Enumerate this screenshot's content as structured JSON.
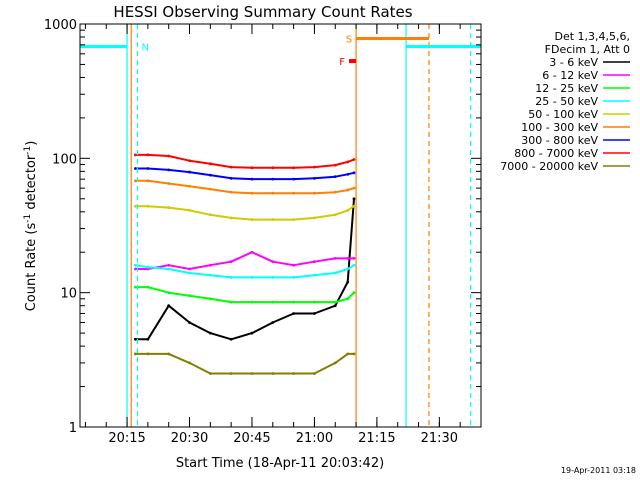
{
  "chart_data": {
    "type": "line",
    "title": "HESSI Observing Summary Count Rates",
    "xlabel": "Start Time (18-Apr-11 20:03:42)",
    "ylabel": "Count Rate (s⁻¹ detector⁻¹)",
    "yscale": "log",
    "ylim": [
      1,
      1000
    ],
    "xlim": [
      "20:03:42",
      "21:40:00"
    ],
    "x_ticks": [
      "20:15",
      "20:30",
      "20:45",
      "21:00",
      "21:15",
      "21:30"
    ],
    "y_ticks": [
      "1",
      "10",
      "100",
      "1000"
    ],
    "grid": false,
    "legend_position": "right",
    "legend_header": [
      "Det 1,3,4,5,6,",
      "FDecim 1, Att 0"
    ],
    "footer_stamp": "19-Apr-2011 03:18",
    "x": [
      "20:17:00",
      "20:20:00",
      "20:25:00",
      "20:30:00",
      "20:35:00",
      "20:40:00",
      "20:45:00",
      "20:50:00",
      "20:55:00",
      "21:00:00",
      "21:05:00",
      "21:08:00",
      "21:09:30"
    ],
    "series": [
      {
        "name": "3 - 6 keV",
        "color": "#000000",
        "values": [
          4.5,
          4.5,
          8,
          6,
          5,
          4.5,
          5,
          6,
          7,
          7,
          8,
          12,
          50
        ]
      },
      {
        "name": "6 - 12 keV",
        "color": "#ff00ff",
        "values": [
          15,
          15,
          16,
          15,
          16,
          17,
          20,
          17,
          16,
          17,
          18,
          18,
          18
        ]
      },
      {
        "name": "12 - 25 keV",
        "color": "#00ff00",
        "values": [
          11,
          11,
          10,
          9.5,
          9,
          8.5,
          8.5,
          8.5,
          8.5,
          8.5,
          8.5,
          9,
          10
        ]
      },
      {
        "name": "25 - 50 keV",
        "color": "#00ffff",
        "values": [
          16,
          15.5,
          15,
          14,
          13.5,
          13,
          13,
          13,
          13,
          13.5,
          14,
          15,
          16
        ]
      },
      {
        "name": "50 - 100 keV",
        "color": "#cccc00",
        "values": [
          44,
          44,
          43,
          41,
          38,
          36,
          35,
          35,
          35,
          36,
          38,
          41,
          44
        ]
      },
      {
        "name": "100 - 300 keV",
        "color": "#ff7f00",
        "values": [
          68,
          68,
          65,
          62,
          59,
          56,
          55,
          55,
          55,
          55,
          56,
          58,
          60
        ]
      },
      {
        "name": "300 - 800 keV",
        "color": "#0000ff",
        "values": [
          84,
          84,
          82,
          79,
          75,
          71,
          70,
          70,
          70,
          71,
          73,
          76,
          78
        ]
      },
      {
        "name": "800 - 7000 keV",
        "color": "#ff0000",
        "values": [
          106,
          106,
          104,
          96,
          91,
          86,
          85,
          85,
          85,
          86,
          89,
          94,
          98
        ]
      },
      {
        "name": "7000 - 20000 keV",
        "color": "#808000",
        "values": [
          3.5,
          3.5,
          3.5,
          3,
          2.5,
          2.5,
          2.5,
          2.5,
          2.5,
          2.5,
          3,
          3.5,
          3.5
        ]
      }
    ],
    "annotations": [
      {
        "label": "N",
        "color": "#00ffff",
        "type": "night",
        "intervals": [
          [
            "20:03:42",
            "20:15:00"
          ],
          [
            "21:22:00",
            "21:40:00"
          ]
        ],
        "dashed_at": [
          "20:17:30",
          "21:37:30"
        ],
        "value": 680
      },
      {
        "label": "S",
        "color": "#ff7f00",
        "type": "saa",
        "intervals": [
          [
            "21:10:00",
            "21:22:00"
          ],
          [
            "21:22:00",
            "21:27:30"
          ]
        ],
        "dashed_at": [
          "21:27:30"
        ],
        "value": 780
      },
      {
        "label": "F",
        "color": "#ff0000",
        "type": "flare",
        "at": "21:09:30",
        "value": 530
      }
    ],
    "vertical_markers": [
      {
        "time": "20:15:00",
        "color": "#00ffff",
        "style": "solid"
      },
      {
        "time": "20:17:30",
        "color": "#00ffff",
        "style": "dashed"
      },
      {
        "time": "20:16:00",
        "color": "#ff7f00",
        "style": "solid"
      },
      {
        "time": "21:10:00",
        "color": "#ff7f00",
        "style": "solid"
      },
      {
        "time": "21:22:00",
        "color": "#00ffff",
        "style": "solid"
      },
      {
        "time": "21:27:30",
        "color": "#ff7f00",
        "style": "dashed"
      },
      {
        "time": "21:37:30",
        "color": "#00ffff",
        "style": "dashed"
      }
    ]
  }
}
